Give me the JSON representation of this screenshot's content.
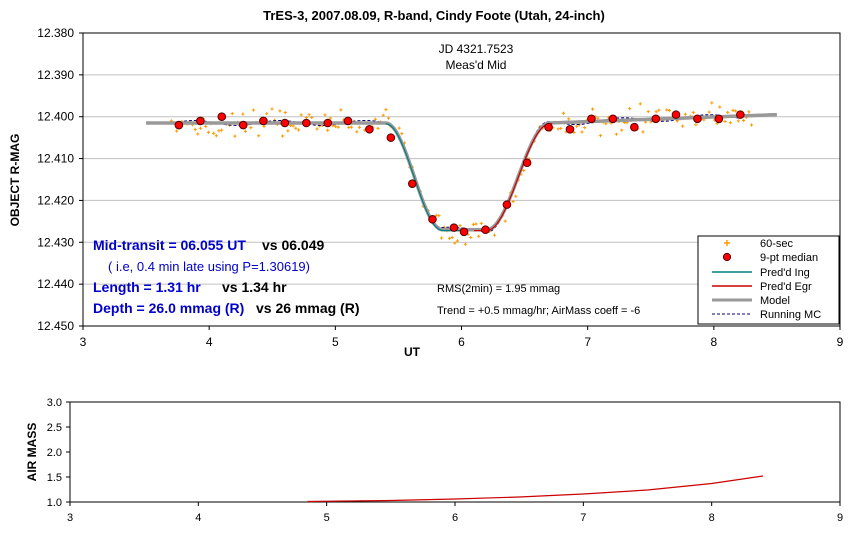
{
  "chart_data": [
    {
      "type": "scatter",
      "title": "TrES-3, 2007.08.09, R-band, Cindy Foote (Utah, 24-inch)",
      "xlabel": "UT",
      "ylabel": "OBJECT R-MAG",
      "xlim": [
        3,
        9
      ],
      "ylim": [
        12.38,
        12.45
      ],
      "y_inverted": true,
      "grid": "horizontal",
      "x_ticks": [
        "3",
        "4",
        "5",
        "6",
        "7",
        "8",
        "9"
      ],
      "y_ticks": [
        "12.380",
        "12.390",
        "12.400",
        "12.410",
        "12.420",
        "12.430",
        "12.440",
        "12.450"
      ],
      "annotation_top": [
        "JD 4321.7523",
        "Meas'd Mid"
      ],
      "stats": {
        "mid_transit": "Mid-transit = 06.055 UT",
        "mid_vs": "vs 06.049",
        "late_note": "( i.e, 0.4 min late using P=1.30619)",
        "length": "Length = 1.31 hr",
        "length_vs": "vs 1.34 hr",
        "depth": "Depth = 26.0 mmag (R)",
        "depth_vs": "vs 26 mmag (R)",
        "rms": "RMS(2min) = 1.95 mmag",
        "trend": "Trend = +0.5 mmag/hr; AirMass coeff = -6"
      },
      "legend_position": "bottom-right",
      "legend": [
        "60-sec",
        "9-pt median",
        "Pred'd Ing",
        "Pred'd Egr",
        "Model",
        "Running MC"
      ],
      "colors": {
        "raw": "#ff9900",
        "median": "#ff0000",
        "ingress": "#008080",
        "egress": "#cc0000",
        "model": "#999999",
        "running": "#000080"
      },
      "series": [
        {
          "name": "9-pt median",
          "x": [
            3.76,
            3.93,
            4.1,
            4.27,
            4.43,
            4.6,
            4.77,
            4.94,
            5.1,
            5.27,
            5.44,
            5.61,
            5.77,
            5.94,
            6.02,
            6.19,
            6.36,
            6.52,
            6.69,
            6.86,
            7.03,
            7.2,
            7.37,
            7.54,
            7.7,
            7.87,
            8.04,
            8.21
          ],
          "y": [
            12.402,
            12.401,
            12.4,
            12.402,
            12.401,
            12.4015,
            12.4015,
            12.4015,
            12.401,
            12.403,
            12.405,
            12.416,
            12.4245,
            12.4265,
            12.4275,
            12.427,
            12.421,
            12.411,
            12.4025,
            12.403,
            12.4005,
            12.4005,
            12.4025,
            12.4005,
            12.3995,
            12.4005,
            12.4005,
            12.3995
          ]
        },
        {
          "name": "Model",
          "x": [
            3.5,
            5.4,
            5.85,
            6.2,
            6.7,
            8.5
          ],
          "y": [
            12.4015,
            12.4015,
            12.427,
            12.427,
            12.4015,
            12.3995
          ]
        }
      ]
    },
    {
      "type": "line",
      "xlabel": "",
      "ylabel": "AIR MASS",
      "xlim": [
        3,
        9
      ],
      "ylim": [
        1.0,
        3.0
      ],
      "x_ticks": [
        "3",
        "4",
        "5",
        "6",
        "7",
        "8",
        "9"
      ],
      "y_ticks": [
        "1.0",
        "1.5",
        "2.0",
        "2.5",
        "3.0"
      ],
      "series": [
        {
          "x": [
            4.85,
            5.5,
            6.0,
            6.5,
            7.0,
            7.5,
            8.0,
            8.4
          ],
          "y": [
            1.01,
            1.03,
            1.06,
            1.1,
            1.16,
            1.24,
            1.37,
            1.52
          ]
        }
      ]
    }
  ]
}
